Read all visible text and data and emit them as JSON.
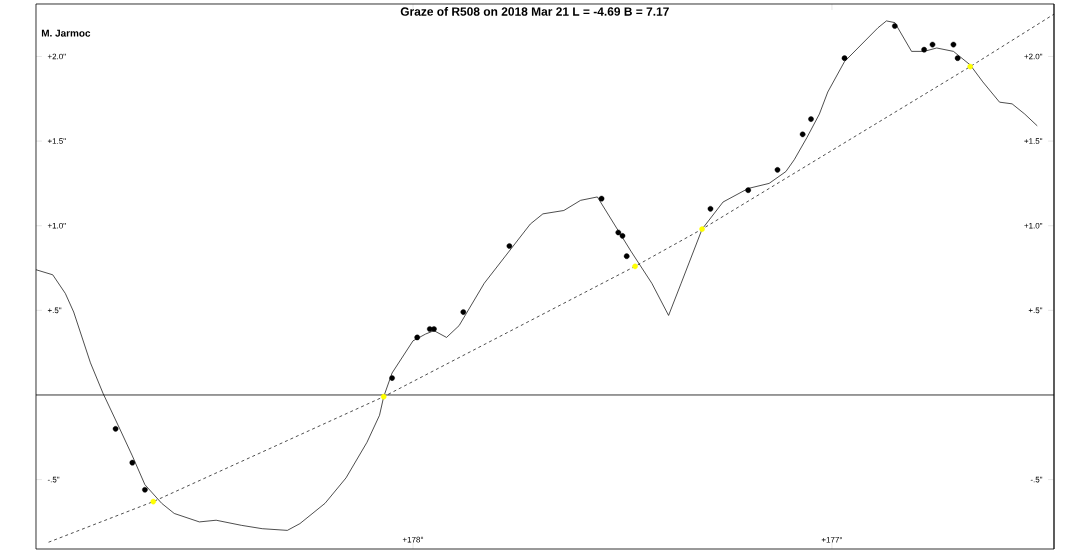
{
  "chart_data": {
    "type": "line",
    "title": "Graze of  R508  on  2018 Mar 21    L = -4.69   B = 7.17",
    "annotations": [
      "M. Jarmoc"
    ],
    "xlim": [
      178.9,
      176.47
    ],
    "ylim": [
      -0.91,
      2.31
    ],
    "xticks": [
      {
        "value": 178,
        "label": "+178°"
      },
      {
        "value": 177,
        "label": "+177°"
      }
    ],
    "yticks": [
      {
        "value": -0.5,
        "label": "-.5\""
      },
      {
        "value": 0.5,
        "label": "+.5\""
      },
      {
        "value": 1.0,
        "label": "+1.0\""
      },
      {
        "value": 1.5,
        "label": "+1.5\""
      },
      {
        "value": 2.0,
        "label": "+2.0\""
      }
    ],
    "y2lim": [
      -0.91,
      2.31
    ],
    "y2ticks": [
      {
        "value": -0.5,
        "label": "-.5\""
      },
      {
        "value": 0.5,
        "label": "+.5\""
      },
      {
        "value": 1.0,
        "label": "+1.0\""
      },
      {
        "value": 1.5,
        "label": "+1.5\""
      },
      {
        "value": 2.0,
        "label": "+2.0\""
      }
    ],
    "ref_lines": [
      {
        "axis": "y",
        "value": 0,
        "color": "#000000",
        "line_style": "solid"
      }
    ],
    "series": [
      {
        "color": "#000000",
        "line_style": "solid",
        "marker": "none",
        "x": [
          178.9,
          178.86,
          178.83,
          178.81,
          178.77,
          178.74,
          178.7,
          178.67,
          178.64,
          178.6,
          178.57,
          178.51,
          178.47,
          178.41,
          178.36,
          178.3,
          178.27,
          178.21,
          178.16,
          178.11,
          178.08,
          178.07,
          178.05,
          178.0,
          177.97,
          177.95,
          177.92,
          177.89,
          177.83,
          177.72,
          177.69,
          177.64,
          177.6,
          177.56,
          177.52,
          177.48,
          177.43,
          177.39,
          177.36,
          177.31,
          177.26,
          177.2,
          177.15,
          177.11,
          177.09,
          177.06,
          177.03,
          177.01,
          176.97,
          176.93,
          176.89,
          176.87,
          176.85,
          176.81,
          176.78,
          176.75,
          176.71,
          176.67,
          176.64,
          176.6,
          176.57,
          176.54,
          176.51
        ],
        "values": [
          0.74,
          0.71,
          0.6,
          0.49,
          0.19,
          0.01,
          -0.2,
          -0.36,
          -0.53,
          -0.64,
          -0.7,
          -0.75,
          -0.74,
          -0.77,
          -0.79,
          -0.8,
          -0.76,
          -0.64,
          -0.49,
          -0.28,
          -0.12,
          -0.01,
          0.13,
          0.32,
          0.36,
          0.38,
          0.34,
          0.41,
          0.66,
          1.01,
          1.07,
          1.09,
          1.15,
          1.17,
          1.01,
          0.85,
          0.66,
          0.47,
          0.66,
          0.98,
          1.14,
          1.22,
          1.25,
          1.32,
          1.39,
          1.52,
          1.66,
          1.79,
          1.97,
          2.07,
          2.17,
          2.21,
          2.2,
          2.03,
          2.03,
          2.05,
          2.03,
          1.95,
          1.85,
          1.73,
          1.72,
          1.66,
          1.59
        ]
      },
      {
        "type": "scatter",
        "color": "#000000",
        "marker": "circle",
        "x": [
          178.71,
          178.67,
          178.64,
          178.05,
          177.99,
          177.96,
          177.95,
          177.88,
          177.77,
          177.55,
          177.51,
          177.5,
          177.49,
          177.29,
          177.2,
          177.13,
          177.07,
          177.05,
          176.97,
          176.85,
          176.78,
          176.76,
          176.71,
          176.7
        ],
        "values": [
          -0.2,
          -0.4,
          -0.56,
          0.1,
          0.34,
          0.39,
          0.39,
          0.49,
          0.88,
          1.16,
          0.96,
          0.94,
          0.82,
          1.1,
          1.21,
          1.33,
          1.54,
          1.63,
          1.99,
          2.18,
          2.04,
          2.07,
          2.07,
          1.99
        ]
      },
      {
        "color": "#000000",
        "line_style": "dashed",
        "marker": "none",
        "x": [
          178.87,
          178.62,
          178.07,
          177.47,
          177.31,
          176.67,
          176.47
        ],
        "values": [
          -0.87,
          -0.63,
          -0.01,
          0.76,
          0.98,
          1.94,
          2.25
        ]
      },
      {
        "type": "scatter",
        "color": "#ffff00",
        "marker": "circle",
        "x": [
          178.62,
          178.07,
          177.47,
          177.31,
          176.67
        ],
        "values": [
          -0.63,
          -0.01,
          0.76,
          0.98,
          1.94
        ]
      }
    ]
  }
}
